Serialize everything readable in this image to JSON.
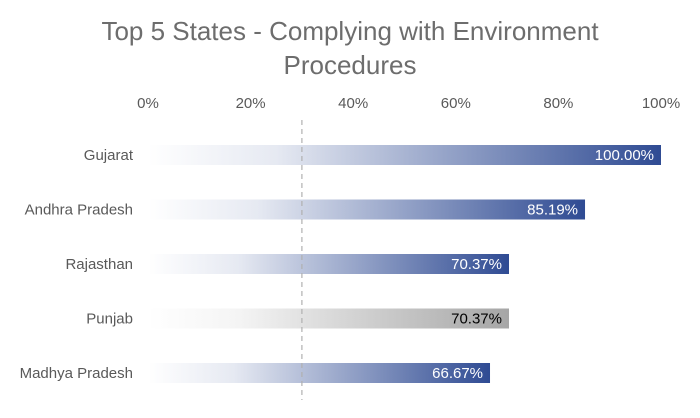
{
  "chart_data": {
    "type": "bar",
    "orientation": "horizontal",
    "title_lines": [
      "Top 5 States - Complying with Environment",
      "Procedures"
    ],
    "categories": [
      "Gujarat",
      "Andhra Pradesh",
      "Rajasthan",
      "Punjab",
      "Madhya Pradesh"
    ],
    "values": [
      100.0,
      85.19,
      70.37,
      70.37,
      66.67
    ],
    "data_labels": [
      "100.00%",
      "85.19%",
      "70.37%",
      "70.37%",
      "66.67%"
    ],
    "xlim": [
      0,
      100
    ],
    "x_tick_labels": [
      "0%",
      "20%",
      "40%",
      "60%",
      "80%",
      "100%"
    ],
    "x_axis_position": "top",
    "reference_line": 30,
    "grid": false,
    "legend": "none",
    "bar_colors": [
      "#2f4b93",
      "#2f4b93",
      "#2f4b93",
      "#a6a6a6",
      "#2f4b93"
    ],
    "label_colors": [
      "#ffffff",
      "#ffffff",
      "#ffffff",
      "#000000",
      "#ffffff"
    ]
  }
}
